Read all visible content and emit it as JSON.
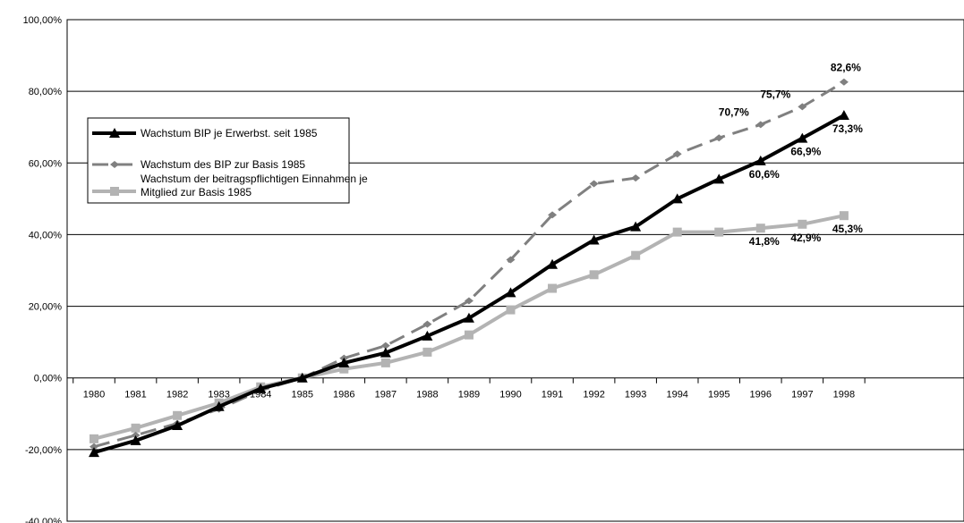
{
  "chart_data": {
    "type": "line",
    "title": "",
    "xlabel": "",
    "ylabel": "",
    "x": [
      "1980",
      "1981",
      "1982",
      "1983",
      "1984",
      "1985",
      "1986",
      "1987",
      "1988",
      "1989",
      "1990",
      "1991",
      "1992",
      "1993",
      "1994",
      "1995",
      "1996",
      "1997",
      "1998"
    ],
    "ylim": [
      -40,
      100
    ],
    "y_ticks": [
      "100,00%",
      "80,00%",
      "60,00%",
      "40,00%",
      "20,00%",
      "0,00%",
      "-20,00%",
      "-40,00%"
    ],
    "grid": true,
    "legend_position": "left",
    "series": [
      {
        "name": "Wachstum BIP je Erwerbst. seit 1985",
        "color": "#000000",
        "style": "solid",
        "marker": "triangle",
        "values": [
          -20.8,
          -17.5,
          -13.3,
          -8.0,
          -3.0,
          0.0,
          4.2,
          7.0,
          11.7,
          16.7,
          23.8,
          31.7,
          38.5,
          42.2,
          50.0,
          55.5,
          60.6,
          66.9,
          73.3
        ]
      },
      {
        "name": "Wachstum des BIP zur Basis 1985",
        "color": "#808080",
        "style": "dashed",
        "marker": "diamond",
        "values": [
          -19.2,
          -16.0,
          -12.7,
          -8.7,
          -3.5,
          0.0,
          5.5,
          9.0,
          15.0,
          21.5,
          33.0,
          45.5,
          54.2,
          55.8,
          62.5,
          67.0,
          70.7,
          75.7,
          82.6
        ]
      },
      {
        "name": "Wachstum der beitragspflichtigen Einnahmen je Mitglied zur Basis 1985",
        "name_lines": [
          "Wachstum der beitragspflichtigen Einnahmen je",
          "Mitglied zur Basis 1985"
        ],
        "color": "#b3b3b3",
        "style": "solid",
        "marker": "square",
        "values": [
          -17.0,
          -14.0,
          -10.5,
          -7.0,
          -2.5,
          0.0,
          2.5,
          4.2,
          7.2,
          12.0,
          19.0,
          25.0,
          28.8,
          34.2,
          40.7,
          40.7,
          41.8,
          42.9,
          45.3
        ]
      }
    ],
    "annotations": [
      {
        "text": "82,6%",
        "series": 1,
        "index": 18,
        "pos": "above"
      },
      {
        "text": "75,7%",
        "series": 1,
        "index": 17,
        "pos": "above-left"
      },
      {
        "text": "70,7%",
        "series": 1,
        "index": 16,
        "pos": "above-left"
      },
      {
        "text": "73,3%",
        "series": 0,
        "index": 18,
        "pos": "below"
      },
      {
        "text": "66,9%",
        "series": 0,
        "index": 17,
        "pos": "below"
      },
      {
        "text": "60,6%",
        "series": 0,
        "index": 16,
        "pos": "below"
      },
      {
        "text": "45,3%",
        "series": 2,
        "index": 18,
        "pos": "below"
      },
      {
        "text": "42,9%",
        "series": 2,
        "index": 17,
        "pos": "below"
      },
      {
        "text": "41,8%",
        "series": 2,
        "index": 16,
        "pos": "below"
      }
    ]
  }
}
